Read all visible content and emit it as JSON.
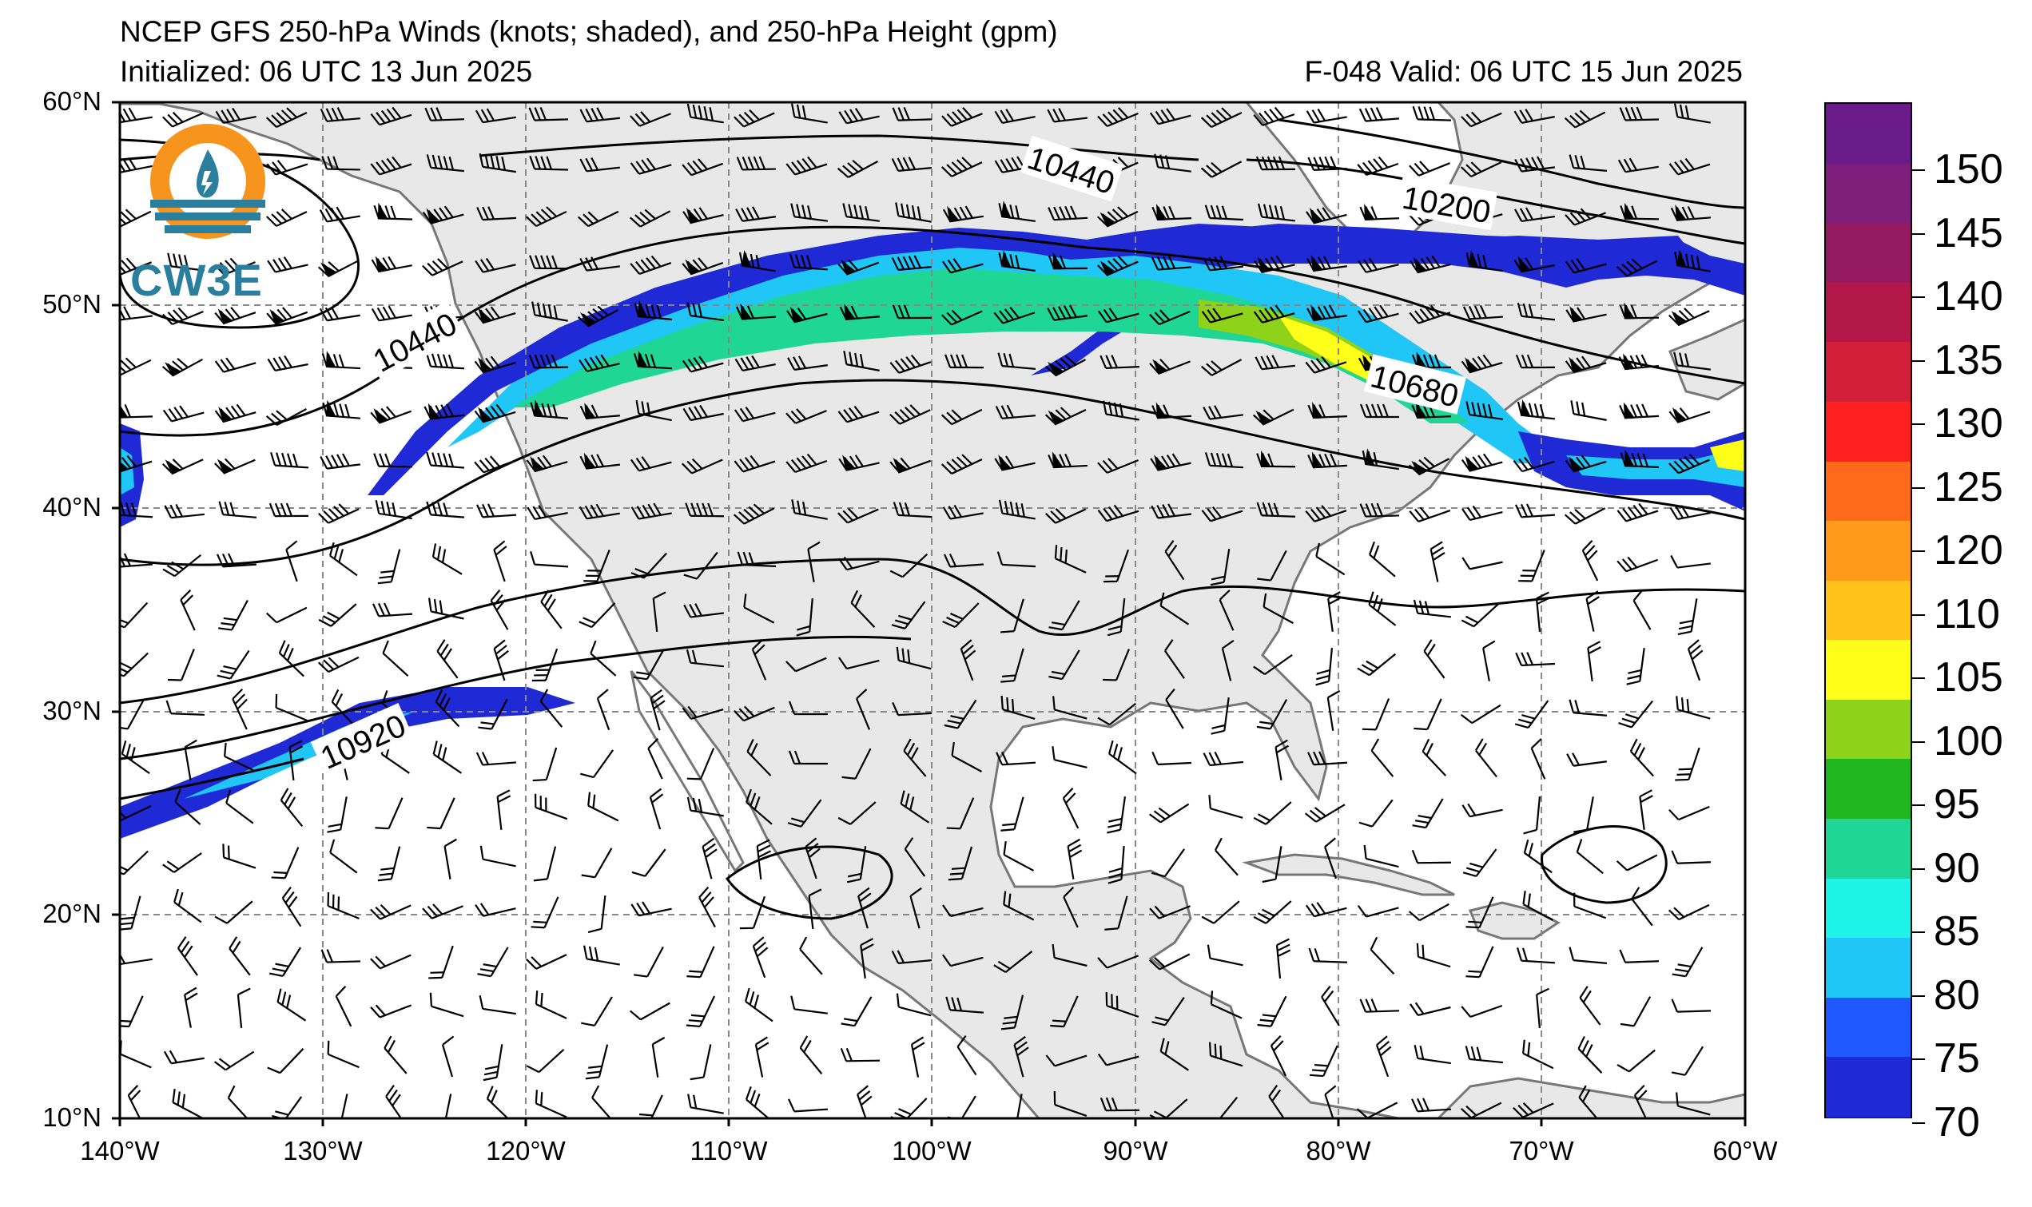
{
  "title": {
    "line1": "NCEP GFS 250-hPa Winds (knots; shaded), and 250-hPa Height (gpm)",
    "line2": "Initialized: 06 UTC 13 Jun 2025",
    "valid": "F-048  Valid: 06 UTC 15 Jun 2025"
  },
  "logo": {
    "text": "CW3E",
    "icon": "cw3e-logo-icon",
    "ring_color": "#f7941d",
    "wave_color": "#2a7f9e"
  },
  "axes": {
    "lat_labels": [
      "60°N",
      "50°N",
      "40°N",
      "30°N",
      "20°N",
      "10°N"
    ],
    "lon_labels": [
      "140°W",
      "130°W",
      "120°W",
      "110°W",
      "100°W",
      "90°W",
      "80°W",
      "70°W",
      "60°W"
    ]
  },
  "contour_labels": [
    "10440",
    "10440",
    "10200",
    "10680",
    "10920"
  ],
  "colorbar": {
    "labels": [
      "150",
      "145",
      "140",
      "135",
      "130",
      "125",
      "120",
      "110",
      "105",
      "100",
      "95",
      "90",
      "85",
      "80",
      "75",
      "70"
    ],
    "colors": [
      "#6a1b8a",
      "#7e1e7a",
      "#961a62",
      "#b2174a",
      "#d21e37",
      "#ff2020",
      "#ff6a1a",
      "#ff9a1a",
      "#ffc21a",
      "#ffff1a",
      "#8ed21a",
      "#1fb61f",
      "#1fd696",
      "#1ff2e6",
      "#1fc6f6",
      "#1f58ff",
      "#1f2ad6"
    ]
  },
  "land_color": "#e8e8e8",
  "jet_colors": {
    "outer": "#1f2ad6",
    "mid": "#1fc6f6",
    "inner": "#1fd696",
    "core": "#8ed21a",
    "max": "#ffff1a"
  }
}
